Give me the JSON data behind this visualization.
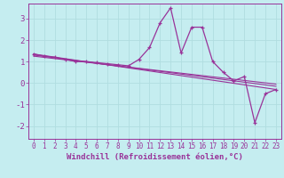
{
  "title": "",
  "xlabel": "Windchill (Refroidissement éolien,°C)",
  "ylabel": "",
  "background_color": "#c5edf0",
  "line_color": "#993399",
  "grid_color": "#b0dde0",
  "xlim": [
    -0.5,
    23.5
  ],
  "ylim": [
    -2.6,
    3.7
  ],
  "yticks": [
    -2,
    -1,
    0,
    1,
    2,
    3
  ],
  "xticks": [
    0,
    1,
    2,
    3,
    4,
    5,
    6,
    7,
    8,
    9,
    10,
    11,
    12,
    13,
    14,
    15,
    16,
    17,
    18,
    19,
    20,
    21,
    22,
    23
  ],
  "xtick_labels": [
    "0",
    "1",
    "2",
    "3",
    "4",
    "5",
    "6",
    "7",
    "8",
    "9",
    "10",
    "11",
    "12",
    "13",
    "14",
    "15",
    "16",
    "17",
    "18",
    "19",
    "20",
    "21",
    "22",
    "23"
  ],
  "main_data": {
    "x": [
      0,
      1,
      2,
      3,
      4,
      5,
      6,
      7,
      8,
      9,
      10,
      11,
      12,
      13,
      14,
      15,
      16,
      17,
      18,
      19,
      20,
      21,
      22,
      23
    ],
    "y": [
      1.35,
      1.25,
      1.2,
      1.1,
      1.0,
      1.0,
      0.95,
      0.9,
      0.85,
      0.8,
      1.1,
      1.65,
      2.8,
      3.5,
      1.4,
      2.6,
      2.6,
      1.0,
      0.5,
      0.1,
      0.3,
      -1.85,
      -0.5,
      -0.3
    ]
  },
  "trend_line1": {
    "x": [
      0,
      23
    ],
    "y": [
      1.35,
      -0.3
    ]
  },
  "trend_line2": {
    "x": [
      0,
      23
    ],
    "y": [
      1.3,
      -0.15
    ]
  },
  "trend_line3": {
    "x": [
      0,
      23
    ],
    "y": [
      1.25,
      -0.05
    ]
  },
  "font_family": "monospace",
  "tick_fontsize": 5.5,
  "xlabel_fontsize": 6.5
}
